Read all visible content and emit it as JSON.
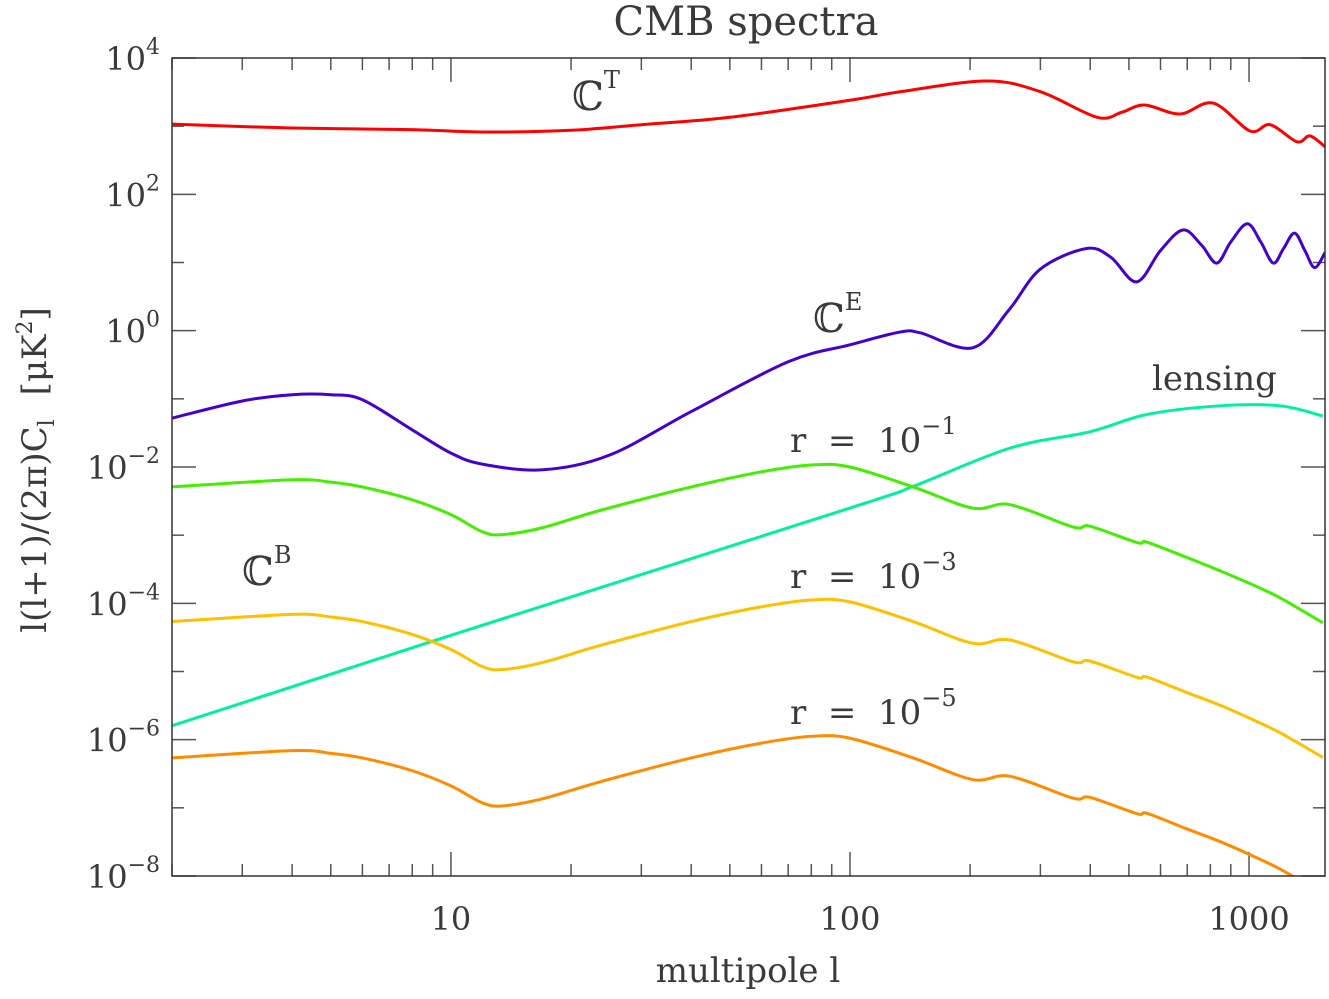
{
  "chart_data": {
    "type": "line",
    "title": "CMB spectra",
    "xlabel": "multipole l",
    "ylabel": "l(l+1)/(2π)C",
    "ylabel_sub": "l",
    "ylabel_unit": "[μK",
    "ylabel_unit_sup": "2",
    "ylabel_unit_end": "]",
    "x_scale": "log",
    "y_scale": "log",
    "xlim": [
      2,
      1550
    ],
    "ylim": [
      1e-08,
      10000.0
    ],
    "grid": false,
    "x_ticks": [
      {
        "value": 10,
        "label": "10"
      },
      {
        "value": 100,
        "label": "100"
      },
      {
        "value": 1000,
        "label": "1000"
      }
    ],
    "y_ticks": [
      {
        "value": 10000.0,
        "base": "10",
        "exp": "4"
      },
      {
        "value": 100.0,
        "base": "10",
        "exp": "2"
      },
      {
        "value": 1,
        "base": "10",
        "exp": "0"
      },
      {
        "value": 0.01,
        "base": "10",
        "exp": "−2"
      },
      {
        "value": 0.0001,
        "base": "10",
        "exp": "−4"
      },
      {
        "value": 1e-06,
        "base": "10",
        "exp": "−6"
      },
      {
        "value": 1e-08,
        "base": "10",
        "exp": "−8"
      }
    ],
    "series": [
      {
        "name": "T",
        "color": "#ff0000",
        "x": [
          2,
          4,
          8,
          12,
          20,
          30,
          50,
          100,
          133,
          220,
          300,
          416,
          480,
          547,
          671,
          813,
          1006,
          1130,
          1320,
          1420,
          1550
        ],
        "y": [
          1070,
          940,
          890,
          820,
          870,
          1050,
          1350,
          2400,
          3180,
          4600,
          3200,
          1350,
          1600,
          2040,
          1510,
          2180,
          850,
          1050,
          590,
          720,
          500
        ]
      },
      {
        "name": "E",
        "color": "#4400cc",
        "x": [
          2,
          3,
          4,
          5,
          6,
          8,
          10,
          12,
          17,
          25,
          40,
          70,
          100,
          133,
          150,
          203,
          250,
          300,
          390,
          450,
          523,
          600,
          683,
          760,
          830,
          900,
          990,
          1070,
          1150,
          1220,
          1300,
          1380,
          1460,
          1550
        ],
        "y": [
          0.052,
          0.093,
          0.115,
          0.115,
          0.097,
          0.035,
          0.016,
          0.011,
          0.0091,
          0.015,
          0.065,
          0.35,
          0.62,
          0.95,
          0.93,
          0.56,
          2,
          8,
          16,
          12,
          5.2,
          15,
          30,
          18,
          9.8,
          20,
          37,
          20,
          9.8,
          16,
          27,
          15,
          8.4,
          14
        ]
      },
      {
        "name": "lensing",
        "color": "#00f0a0",
        "x": [
          2,
          10,
          100,
          144,
          252,
          400,
          555,
          846,
          1197,
          1530
        ],
        "y": [
          1.6e-06,
          3.4e-05,
          0.0025,
          0.0052,
          0.019,
          0.033,
          0.059,
          0.079,
          0.079,
          0.056
        ]
      },
      {
        "name": "r = 10^-1",
        "color": "#44ee00",
        "x": [
          2,
          4,
          5,
          6,
          8,
          10,
          12,
          13.5,
          17,
          23.6,
          40,
          60,
          80,
          100,
          144,
          203,
          252,
          362,
          400,
          524,
          555,
          699,
          846,
          1006,
          1197,
          1530
        ],
        "y": [
          0.0051,
          0.0065,
          0.006,
          0.0051,
          0.0033,
          0.002,
          0.00112,
          0.00102,
          0.00129,
          0.0023,
          0.0051,
          0.0085,
          0.0107,
          0.01,
          0.0051,
          0.0025,
          0.0028,
          0.00132,
          0.00135,
          0.00078,
          0.00079,
          0.00047,
          0.0003,
          0.000195,
          0.00012,
          5.2e-05
        ]
      },
      {
        "name": "r = 10^-3",
        "color": "#ffc000",
        "x": [
          2,
          4,
          5,
          6,
          8,
          10,
          12,
          13.5,
          17,
          23.6,
          40,
          60,
          80,
          100,
          144,
          203,
          252,
          362,
          400,
          524,
          555,
          699,
          846,
          1006,
          1197,
          1530
        ],
        "y": [
          5.4e-05,
          6.9e-05,
          6.3e-05,
          5.4e-05,
          3.5e-05,
          2.1e-05,
          1.18e-05,
          1.07e-05,
          1.36e-05,
          2.4e-05,
          5.4e-05,
          8.9e-05,
          0.000112,
          0.000105,
          5.4e-05,
          2.6e-05,
          2.9e-05,
          1.39e-05,
          1.42e-05,
          8.2e-06,
          8.3e-06,
          4.9e-06,
          3.2e-06,
          2.05e-06,
          1.26e-06,
          5.5e-07
        ]
      },
      {
        "name": "r = 10^-5",
        "color": "#ff8c00",
        "x": [
          2,
          4,
          5,
          6,
          8,
          10,
          12,
          13.5,
          17,
          23.6,
          40,
          60,
          80,
          100,
          144,
          203,
          252,
          362,
          400,
          524,
          555,
          699,
          846,
          1006,
          1197,
          1530
        ],
        "y": [
          5.4e-07,
          6.9e-07,
          6.3e-07,
          5.4e-07,
          3.5e-07,
          2.1e-07,
          1.18e-07,
          1.07e-07,
          1.36e-07,
          2.4e-07,
          5.4e-07,
          8.9e-07,
          1.12e-06,
          1.05e-06,
          5.4e-07,
          2.6e-07,
          2.9e-07,
          1.39e-07,
          1.42e-07,
          8.2e-08,
          8.3e-08,
          4.9e-08,
          3.2e-08,
          2.05e-08,
          1.26e-08,
          5.5e-09
        ]
      }
    ],
    "annotations": {
      "ct": {
        "base": "ℂ",
        "sup": "T"
      },
      "ce": {
        "base": "ℂ",
        "sup": "E"
      },
      "cb": {
        "base": "ℂ",
        "sup": "B"
      },
      "lensing": "lensing",
      "r1": {
        "base": "r  =  10",
        "sup": "−1"
      },
      "r3": {
        "base": "r  =  10",
        "sup": "−3"
      },
      "r5": {
        "base": "r  =  10",
        "sup": "−5"
      }
    }
  }
}
